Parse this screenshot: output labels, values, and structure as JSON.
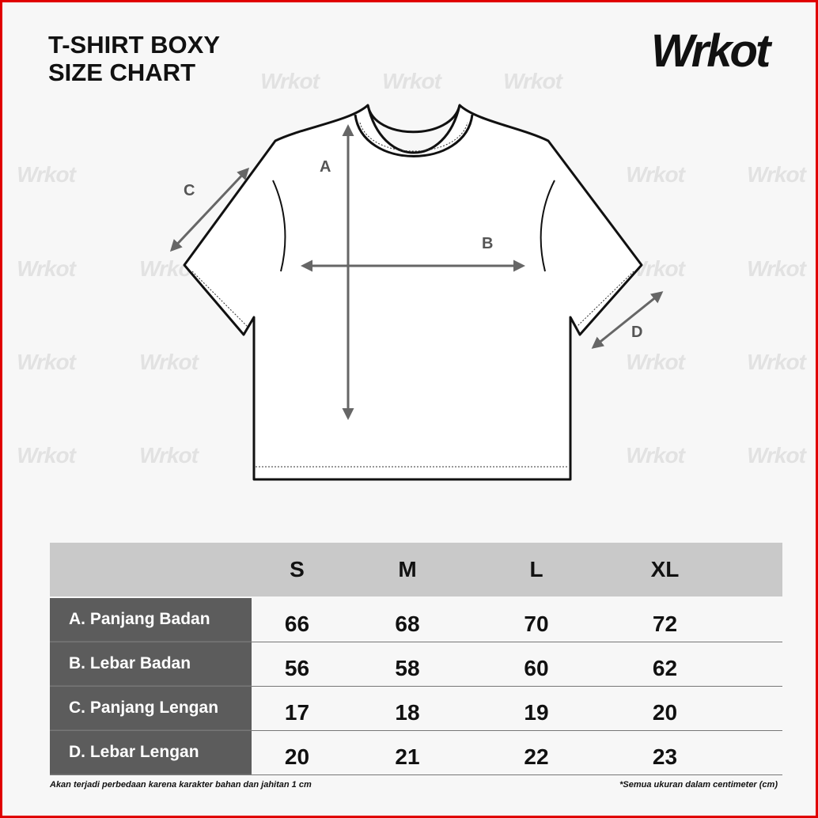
{
  "title_lines": [
    "T-SHIRT BOXY",
    "SIZE CHART"
  ],
  "brand": "Wrkot",
  "diagram_labels": {
    "a": "A",
    "b": "B",
    "c": "C",
    "d": "D"
  },
  "table": {
    "sizes": [
      "S",
      "M",
      "L",
      "XL"
    ],
    "rows": [
      {
        "label": "A. Panjang Badan",
        "values": [
          "66",
          "68",
          "70",
          "72"
        ]
      },
      {
        "label": "B. Lebar Badan",
        "values": [
          "56",
          "58",
          "60",
          "62"
        ]
      },
      {
        "label": "C. Panjang Lengan",
        "values": [
          "17",
          "18",
          "19",
          "20"
        ]
      },
      {
        "label": "D. Lebar Lengan",
        "values": [
          "20",
          "21",
          "22",
          "23"
        ]
      }
    ]
  },
  "notes": {
    "left": "Akan terjadi perbedaan karena karakter bahan dan jahitan 1 cm",
    "right": "*Semua ukuran dalam centimeter (cm)"
  },
  "colors": {
    "border": "#e00000",
    "header_bg": "#c9c9c9",
    "label_bg": "#5c5c5c",
    "arrow": "#666666"
  }
}
